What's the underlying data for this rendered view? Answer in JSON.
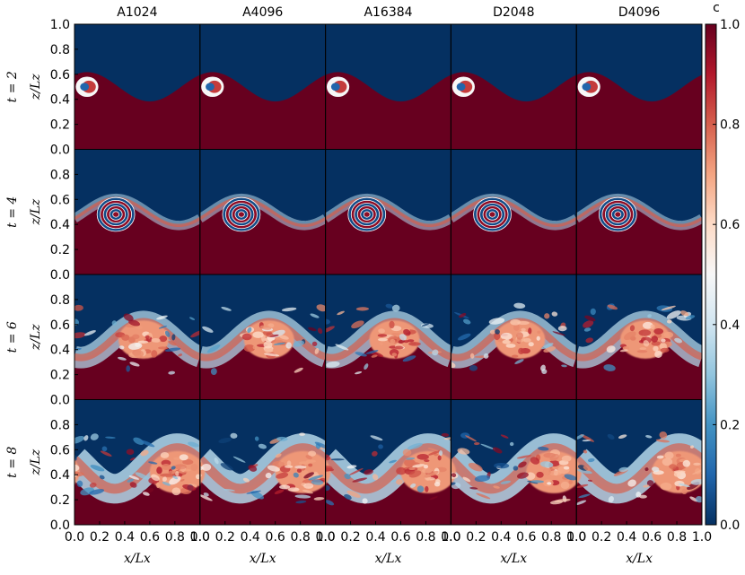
{
  "chart_data": {
    "type": "heatmap",
    "columns": [
      "A1024",
      "A4096",
      "A16384",
      "D2048",
      "D4096"
    ],
    "rows": [
      {
        "label": "t = 2",
        "time": 2
      },
      {
        "label": "t = 4",
        "time": 4
      },
      {
        "label": "t = 6",
        "time": 6
      },
      {
        "label": "t = 8",
        "time": 8
      }
    ],
    "xlabel": "x/Lx",
    "ylabel": "z/Lz",
    "xlim": [
      0.0,
      1.0
    ],
    "ylim": [
      0.0,
      1.0
    ],
    "x_ticks": [
      "0.0",
      "0.2",
      "0.4",
      "0.6",
      "0.8",
      "1.0"
    ],
    "y_ticks_top_row": [
      "0.0",
      "0.2",
      "0.4",
      "0.6",
      "0.8",
      "1.0"
    ],
    "y_ticks_other_rows": [
      "0.0",
      "0.2",
      "0.4",
      "0.6",
      "0.8"
    ],
    "colorbar": {
      "label": "c",
      "min": 0.0,
      "max": 1.0,
      "ticks": [
        "0.0",
        "0.2",
        "0.4",
        "0.6",
        "0.8",
        "1.0"
      ],
      "colormap": [
        "#053061",
        "#2166ac",
        "#4393c3",
        "#92c5de",
        "#d1e5f0",
        "#f7f7f7",
        "#fddbc7",
        "#f4a582",
        "#d6604d",
        "#b2182b",
        "#67001f"
      ]
    },
    "fields": [
      {
        "time": 2,
        "interface_height": 0.5,
        "amplitude": 0.13,
        "roll_center": [
          0.1,
          0.5
        ],
        "roll_radius": 0.1,
        "mixing": 0.0
      },
      {
        "time": 4,
        "interface_height": 0.5,
        "amplitude": 0.12,
        "roll_center": [
          0.33,
          0.48
        ],
        "roll_radius": 0.15,
        "mixing": 0.15
      },
      {
        "time": 6,
        "interface_height": 0.48,
        "amplitude": 0.16,
        "roll_center": [
          0.55,
          0.48
        ],
        "roll_radius": 0.2,
        "mixing": 0.6
      },
      {
        "time": 8,
        "interface_height": 0.45,
        "amplitude": 0.18,
        "roll_center": [
          0.82,
          0.42
        ],
        "roll_radius": 0.22,
        "mixing": 0.9
      }
    ]
  }
}
